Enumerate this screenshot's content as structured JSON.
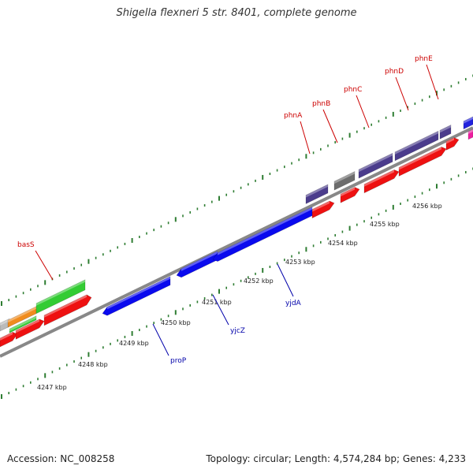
{
  "title": "Shigella flexneri 5 str. 8401, complete genome",
  "footer": {
    "accession": "Accession: NC_008258",
    "summary": "Topology: circular; Length: 4,574,284 bp; Genes: 4,233"
  },
  "colors": {
    "backbone": "#888888",
    "tick": "#2e7d32",
    "blue_gene": "#0a0aee",
    "red_gene": "#ee1111",
    "purple_gene": "#4b3c8c",
    "gray_gene": "#6d6d6d",
    "green_gene": "#33cc33",
    "orange_gene": "#f08c1e",
    "magenta_gene": "#ee1fa0",
    "label_red": "#cc0000",
    "label_blue": "#0000aa"
  },
  "scale_labels": [
    "4247 kbp",
    "4248 kbp",
    "4249 kbp",
    "4250 kbp",
    "4251 kbp",
    "4252 kbp",
    "4253 kbp",
    "4254 kbp",
    "4255 kbp",
    "4256 kbp"
  ],
  "gene_labels_top": [
    "basS",
    "phnA",
    "phnB",
    "phnC",
    "phnD",
    "phnE"
  ],
  "gene_labels_bottom": [
    "proP",
    "yjcZ",
    "yjdA"
  ]
}
